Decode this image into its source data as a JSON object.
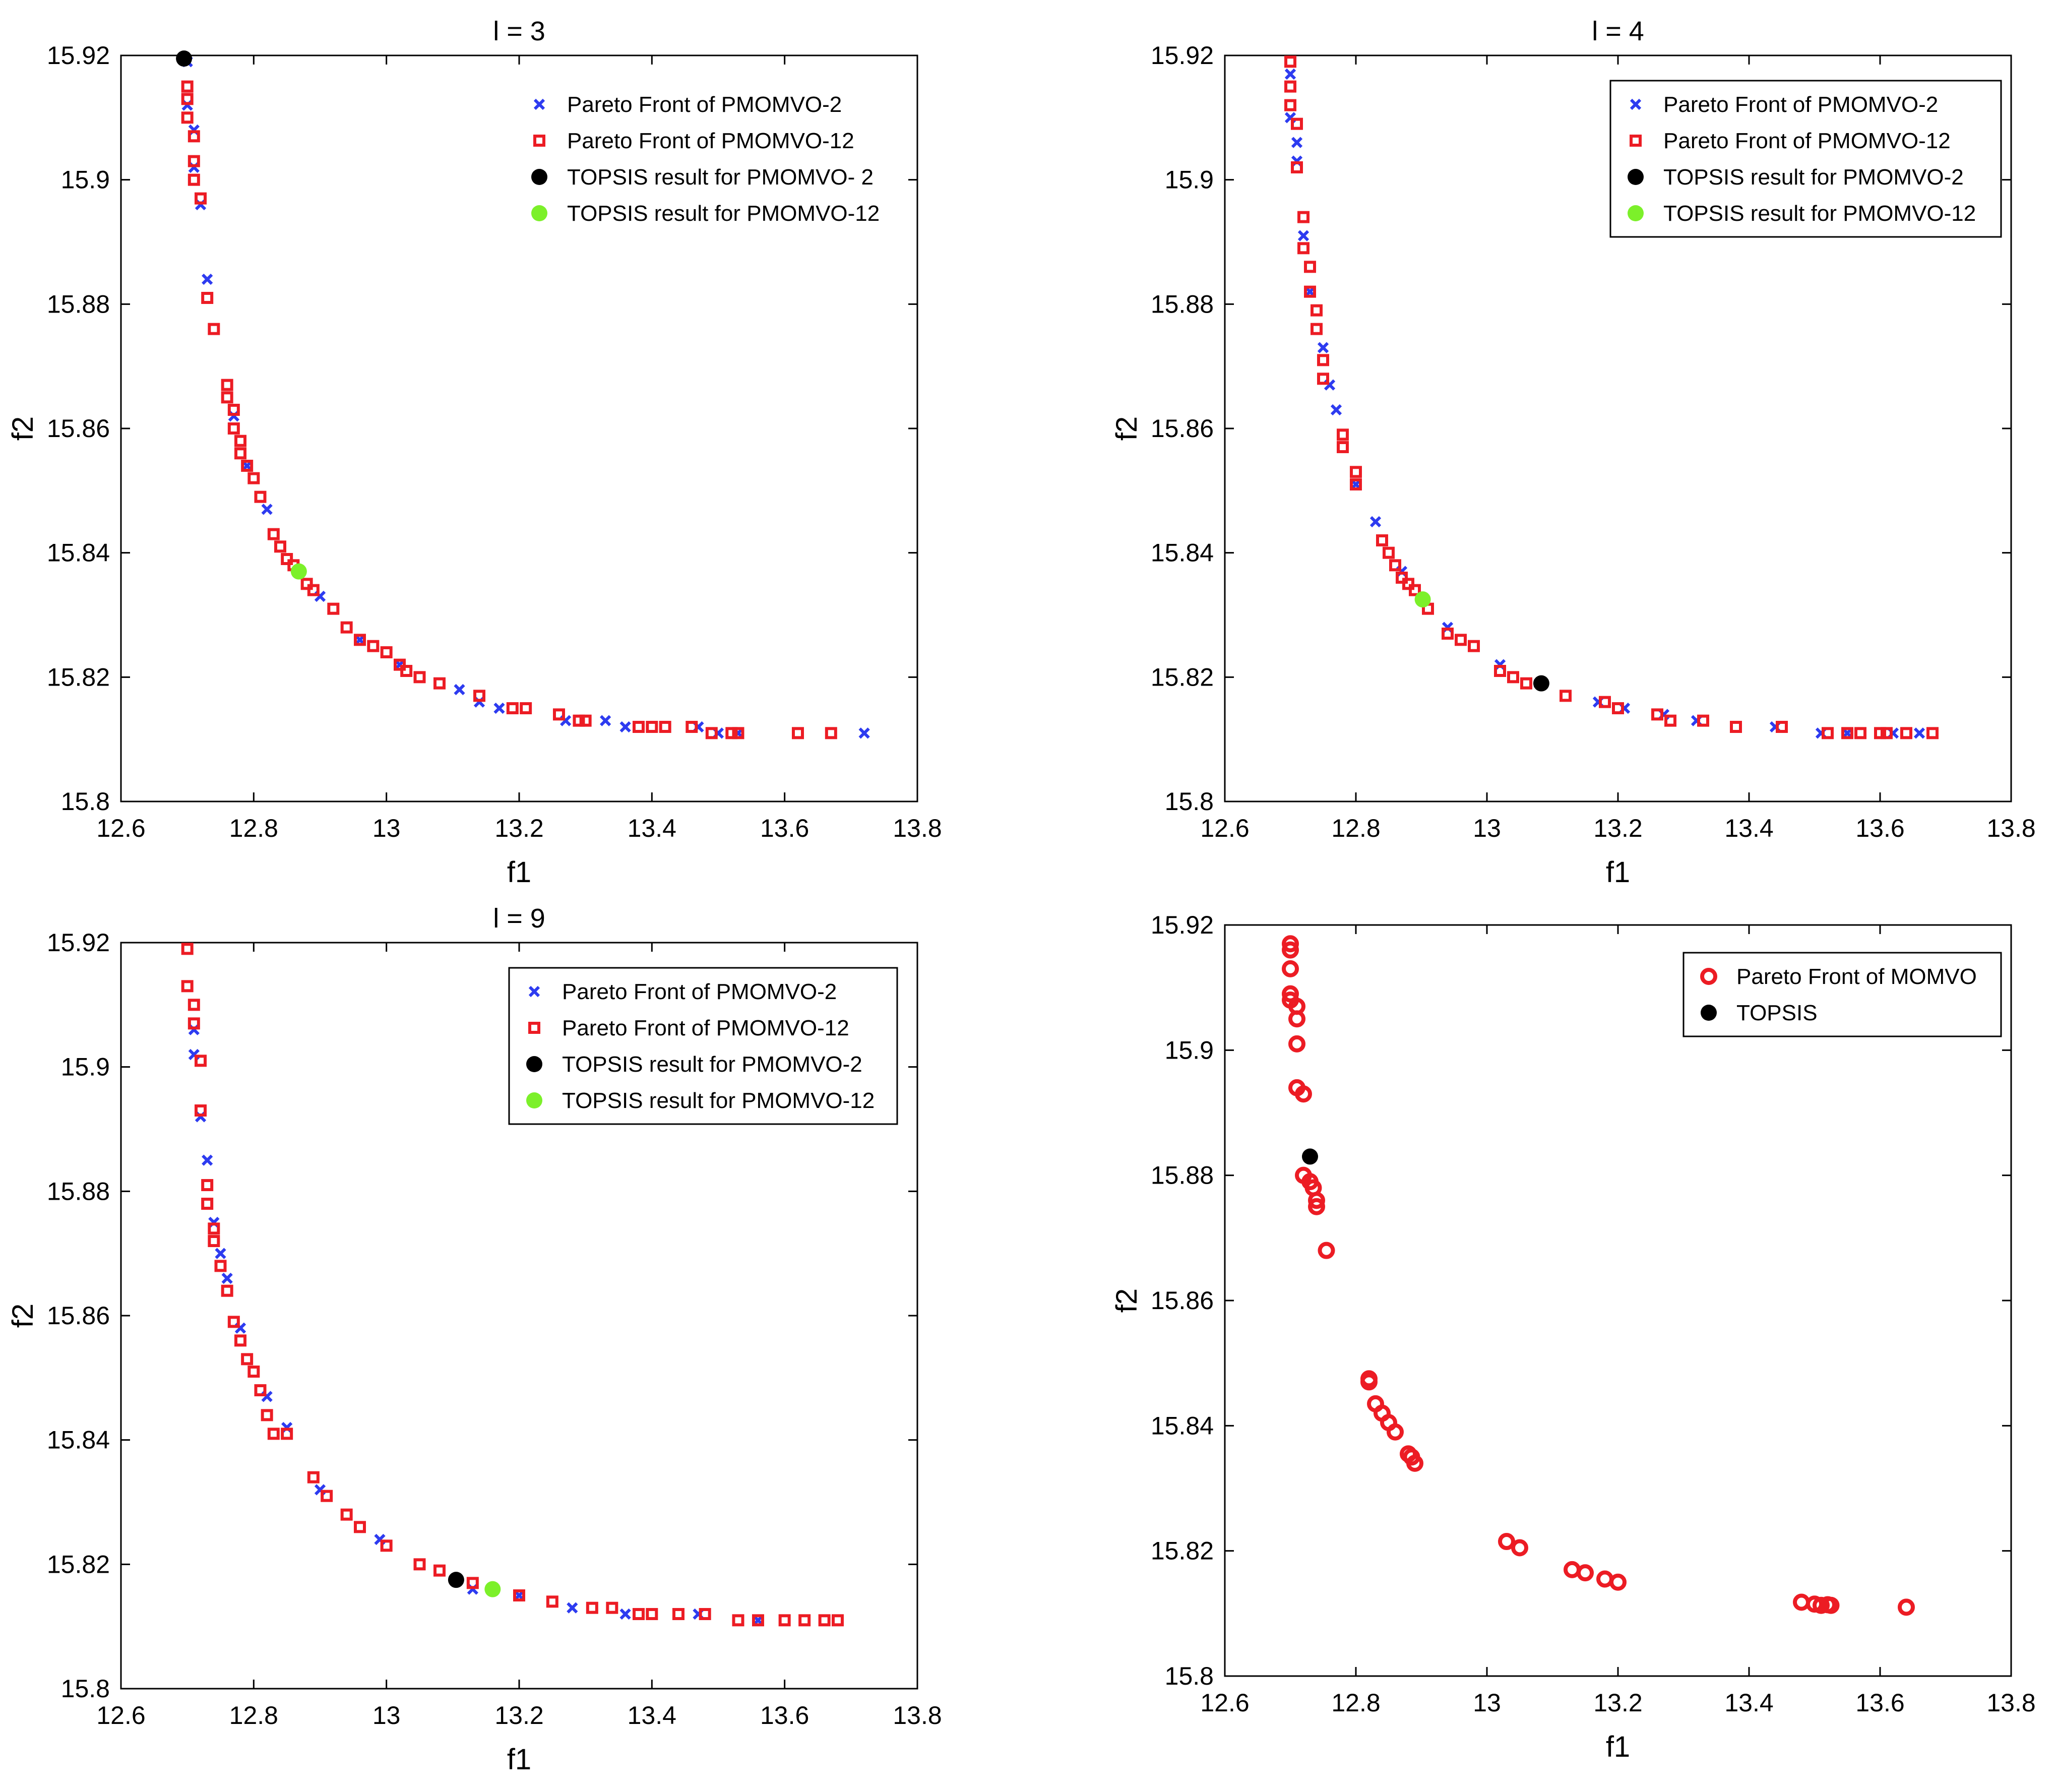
{
  "colors": {
    "pmomvo2": "#2d3bf0",
    "pmomvo12": "#ec1c24",
    "momvo": "#ec1c24",
    "topsis2": "#000000",
    "topsis12": "#7cf02a",
    "topsis_momvo": "#000000"
  },
  "chart_data": [
    {
      "type": "scatter",
      "title": "l = 3",
      "xlabel": "f1",
      "ylabel": "f2",
      "xlim": [
        12.6,
        13.8
      ],
      "ylim": [
        15.8,
        15.92
      ],
      "xticks": [
        "12.6",
        "12.8",
        "13",
        "13.2",
        "13.4",
        "13.6",
        "13.8"
      ],
      "yticks": [
        "15.8",
        "15.82",
        "15.84",
        "15.86",
        "15.88",
        "15.9",
        "15.92"
      ],
      "legend_position": "top-right",
      "legend_frame": false,
      "legend": [
        "Pareto Front of PMOMVO-2",
        "Pareto Front of PMOMVO-12",
        "TOPSIS result for PMOMVO-   2",
        "TOPSIS result for PMOMVO-12"
      ],
      "series": [
        {
          "name": "Pareto Front of PMOMVO-2",
          "marker": "x",
          "color_key": "pmomvo2",
          "x": [
            12.7,
            12.7,
            12.71,
            12.71,
            12.72,
            12.73,
            12.77,
            12.79,
            12.82,
            12.9,
            12.96,
            13.02,
            13.11,
            13.14,
            13.17,
            13.27,
            13.33,
            13.36,
            13.47,
            13.5,
            13.53,
            13.72
          ],
          "y": [
            15.919,
            15.912,
            15.908,
            15.902,
            15.896,
            15.884,
            15.862,
            15.854,
            15.847,
            15.833,
            15.826,
            15.822,
            15.818,
            15.816,
            15.815,
            15.813,
            15.813,
            15.812,
            15.812,
            15.811,
            15.811,
            15.811
          ]
        },
        {
          "name": "Pareto Front of PMOMVO-12",
          "marker": "square",
          "color_key": "pmomvo12",
          "x": [
            12.7,
            12.7,
            12.7,
            12.71,
            12.71,
            12.71,
            12.72,
            12.73,
            12.74,
            12.76,
            12.76,
            12.77,
            12.77,
            12.78,
            12.78,
            12.79,
            12.8,
            12.81,
            12.83,
            12.84,
            12.85,
            12.86,
            12.88,
            12.89,
            12.92,
            12.94,
            12.96,
            12.98,
            13.0,
            13.02,
            13.03,
            13.05,
            13.08,
            13.14,
            13.19,
            13.21,
            13.26,
            13.29,
            13.3,
            13.38,
            13.4,
            13.42,
            13.46,
            13.49,
            13.52,
            13.53,
            13.62,
            13.67
          ],
          "y": [
            15.915,
            15.913,
            15.91,
            15.907,
            15.903,
            15.9,
            15.897,
            15.881,
            15.876,
            15.867,
            15.865,
            15.863,
            15.86,
            15.858,
            15.856,
            15.854,
            15.852,
            15.849,
            15.843,
            15.841,
            15.839,
            15.838,
            15.835,
            15.834,
            15.831,
            15.828,
            15.826,
            15.825,
            15.824,
            15.822,
            15.821,
            15.82,
            15.819,
            15.817,
            15.815,
            15.815,
            15.814,
            15.813,
            15.813,
            15.812,
            15.812,
            15.812,
            15.812,
            15.811,
            15.811,
            15.811,
            15.811,
            15.811
          ]
        },
        {
          "name": "TOPSIS result for PMOMVO-   2",
          "marker": "dot",
          "color_key": "topsis2",
          "x": [
            12.695
          ],
          "y": [
            15.9195
          ]
        },
        {
          "name": "TOPSIS result for PMOMVO-12",
          "marker": "dot",
          "color_key": "topsis12",
          "x": [
            12.868
          ],
          "y": [
            15.837
          ]
        }
      ]
    },
    {
      "type": "scatter",
      "title": "l = 4",
      "xlabel": "f1",
      "ylabel": "f2",
      "xlim": [
        12.6,
        13.8
      ],
      "ylim": [
        15.8,
        15.92
      ],
      "xticks": [
        "12.6",
        "12.8",
        "13",
        "13.2",
        "13.4",
        "13.6",
        "13.8"
      ],
      "yticks": [
        "15.8",
        "15.82",
        "15.84",
        "15.86",
        "15.88",
        "15.9",
        "15.92"
      ],
      "legend_position": "top-right",
      "legend_frame": true,
      "legend": [
        "Pareto Front of PMOMVO-2",
        "Pareto Front of PMOMVO-12",
        "TOPSIS result for PMOMVO-2",
        "TOPSIS result for PMOMVO-12"
      ],
      "series": [
        {
          "name": "Pareto Front of PMOMVO-2",
          "marker": "x",
          "color_key": "pmomvo2",
          "x": [
            12.7,
            12.7,
            12.71,
            12.71,
            12.72,
            12.73,
            12.75,
            12.76,
            12.77,
            12.8,
            12.83,
            12.87,
            12.94,
            13.02,
            13.08,
            13.17,
            13.21,
            13.27,
            13.32,
            13.44,
            13.51,
            13.55,
            13.62,
            13.66
          ],
          "y": [
            15.917,
            15.91,
            15.906,
            15.903,
            15.891,
            15.882,
            15.873,
            15.867,
            15.863,
            15.851,
            15.845,
            15.837,
            15.828,
            15.822,
            15.819,
            15.816,
            15.815,
            15.814,
            15.813,
            15.812,
            15.811,
            15.811,
            15.811,
            15.811
          ]
        },
        {
          "name": "Pareto Front of PMOMVO-12",
          "marker": "square",
          "color_key": "pmomvo12",
          "x": [
            12.7,
            12.7,
            12.7,
            12.71,
            12.71,
            12.72,
            12.72,
            12.73,
            12.73,
            12.74,
            12.74,
            12.75,
            12.75,
            12.78,
            12.78,
            12.8,
            12.8,
            12.84,
            12.85,
            12.86,
            12.87,
            12.88,
            12.89,
            12.91,
            12.94,
            12.96,
            12.98,
            13.02,
            13.04,
            13.06,
            13.12,
            13.18,
            13.2,
            13.26,
            13.28,
            13.33,
            13.38,
            13.45,
            13.52,
            13.55,
            13.57,
            13.6,
            13.61,
            13.64,
            13.68
          ],
          "y": [
            15.919,
            15.915,
            15.912,
            15.909,
            15.902,
            15.894,
            15.889,
            15.886,
            15.882,
            15.879,
            15.876,
            15.871,
            15.868,
            15.859,
            15.857,
            15.853,
            15.851,
            15.842,
            15.84,
            15.838,
            15.836,
            15.835,
            15.834,
            15.831,
            15.827,
            15.826,
            15.825,
            15.821,
            15.82,
            15.819,
            15.817,
            15.816,
            15.815,
            15.814,
            15.813,
            15.813,
            15.812,
            15.812,
            15.811,
            15.811,
            15.811,
            15.811,
            15.811,
            15.811,
            15.811
          ]
        },
        {
          "name": "TOPSIS result for PMOMVO-2",
          "marker": "dot",
          "color_key": "topsis2",
          "x": [
            13.083
          ],
          "y": [
            15.819
          ]
        },
        {
          "name": "TOPSIS result for PMOMVO-12",
          "marker": "dot",
          "color_key": "topsis12",
          "x": [
            12.902
          ],
          "y": [
            15.8325
          ]
        }
      ]
    },
    {
      "type": "scatter",
      "title": "l = 9",
      "xlabel": "f1",
      "ylabel": "f2",
      "xlim": [
        12.6,
        13.8
      ],
      "ylim": [
        15.8,
        15.92
      ],
      "xticks": [
        "12.6",
        "12.8",
        "13",
        "13.2",
        "13.4",
        "13.6",
        "13.8"
      ],
      "yticks": [
        "15.8",
        "15.82",
        "15.84",
        "15.86",
        "15.88",
        "15.9",
        "15.92"
      ],
      "legend_position": "top-right",
      "legend_frame": true,
      "legend": [
        "Pareto Front of PMOMVO-2",
        "Pareto Front of PMOMVO-12",
        "TOPSIS result for PMOMVO-2",
        "TOPSIS result for PMOMVO-12"
      ],
      "series": [
        {
          "name": "Pareto Front of PMOMVO-2",
          "marker": "x",
          "color_key": "pmomvo2",
          "x": [
            12.71,
            12.71,
            12.72,
            12.73,
            12.74,
            12.75,
            12.76,
            12.78,
            12.82,
            12.85,
            12.9,
            12.99,
            13.13,
            13.2,
            13.28,
            13.36,
            13.47,
            13.56
          ],
          "y": [
            15.906,
            15.902,
            15.892,
            15.885,
            15.875,
            15.87,
            15.866,
            15.858,
            15.847,
            15.842,
            15.832,
            15.824,
            15.816,
            15.815,
            15.813,
            15.812,
            15.812,
            15.811
          ]
        },
        {
          "name": "Pareto Front of PMOMVO-12",
          "marker": "square",
          "color_key": "pmomvo12",
          "x": [
            12.7,
            12.7,
            12.71,
            12.71,
            12.72,
            12.72,
            12.73,
            12.73,
            12.74,
            12.74,
            12.75,
            12.76,
            12.77,
            12.78,
            12.79,
            12.8,
            12.81,
            12.82,
            12.83,
            12.85,
            12.89,
            12.91,
            12.94,
            12.96,
            13.0,
            13.05,
            13.08,
            13.13,
            13.2,
            13.25,
            13.31,
            13.34,
            13.38,
            13.4,
            13.44,
            13.48,
            13.53,
            13.56,
            13.6,
            13.63,
            13.66,
            13.68
          ],
          "y": [
            15.919,
            15.913,
            15.91,
            15.907,
            15.901,
            15.893,
            15.881,
            15.878,
            15.874,
            15.872,
            15.868,
            15.864,
            15.859,
            15.856,
            15.853,
            15.851,
            15.848,
            15.844,
            15.841,
            15.841,
            15.834,
            15.831,
            15.828,
            15.826,
            15.823,
            15.82,
            15.819,
            15.817,
            15.815,
            15.814,
            15.813,
            15.813,
            15.812,
            15.812,
            15.812,
            15.812,
            15.811,
            15.811,
            15.811,
            15.811,
            15.811,
            15.811
          ]
        },
        {
          "name": "TOPSIS result for PMOMVO-2",
          "marker": "dot",
          "color_key": "topsis2",
          "x": [
            13.105
          ],
          "y": [
            15.8175
          ]
        },
        {
          "name": "TOPSIS result for PMOMVO-12",
          "marker": "dot",
          "color_key": "topsis12",
          "x": [
            13.16
          ],
          "y": [
            15.816
          ]
        }
      ]
    },
    {
      "type": "scatter",
      "title": "",
      "xlabel": "f1",
      "ylabel": "f2",
      "xlim": [
        12.6,
        13.8
      ],
      "ylim": [
        15.8,
        15.92
      ],
      "xticks": [
        "12.6",
        "12.8",
        "13",
        "13.2",
        "13.4",
        "13.6",
        "13.8"
      ],
      "yticks": [
        "15.8",
        "15.82",
        "15.84",
        "15.86",
        "15.88",
        "15.9",
        "15.92"
      ],
      "legend_position": "top-right",
      "legend_frame": true,
      "legend": [
        "Pareto Front of MOMVO",
        "TOPSIS"
      ],
      "series": [
        {
          "name": "Pareto Front of MOMVO",
          "marker": "circle",
          "color_key": "momvo",
          "x": [
            12.7,
            12.7,
            12.7,
            12.7,
            12.7,
            12.71,
            12.71,
            12.71,
            12.71,
            12.72,
            12.72,
            12.73,
            12.735,
            12.74,
            12.74,
            12.755,
            12.82,
            12.82,
            12.83,
            12.84,
            12.85,
            12.86,
            12.88,
            12.885,
            12.89,
            13.03,
            13.05,
            13.13,
            13.15,
            13.18,
            13.2,
            13.48,
            13.5,
            13.51,
            13.52,
            13.525,
            13.64
          ],
          "y": [
            15.917,
            15.916,
            15.913,
            15.909,
            15.908,
            15.907,
            15.905,
            15.901,
            15.894,
            15.893,
            15.88,
            15.879,
            15.878,
            15.876,
            15.875,
            15.868,
            15.8475,
            15.847,
            15.8435,
            15.842,
            15.8405,
            15.839,
            15.8355,
            15.835,
            15.834,
            15.8215,
            15.8205,
            15.817,
            15.8165,
            15.8155,
            15.815,
            15.8118,
            15.8115,
            15.8113,
            15.8114,
            15.8113,
            15.811
          ]
        },
        {
          "name": "TOPSIS",
          "marker": "dot",
          "color_key": "topsis_momvo",
          "x": [
            12.73
          ],
          "y": [
            15.883
          ]
        }
      ]
    }
  ]
}
